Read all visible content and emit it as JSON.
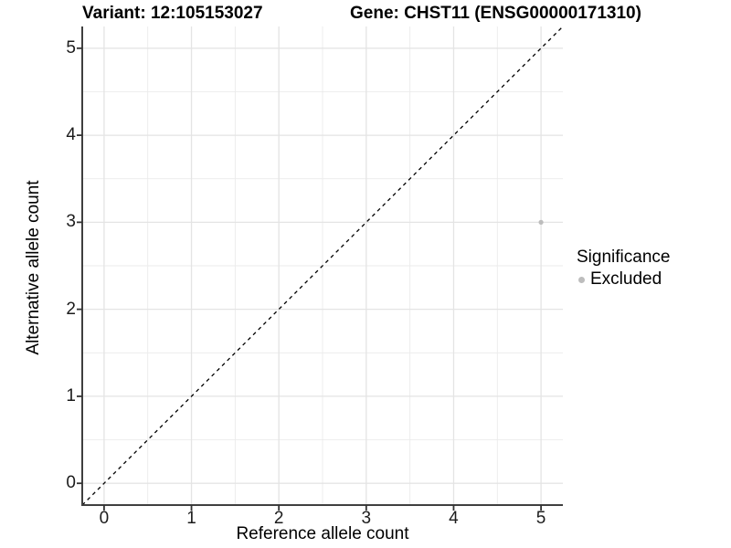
{
  "figure": {
    "title_left": "Variant: 12:105153027",
    "title_right": "Gene: CHST11 (ENSG00000171310)"
  },
  "chart_data": {
    "type": "scatter",
    "title_left": "Variant: 12:105153027",
    "title_right": "Gene: CHST11 (ENSG00000171310)",
    "xlabel": "Reference allele count",
    "ylabel": "Alternative allele count",
    "xlim": [
      -0.25,
      5.25
    ],
    "ylim": [
      -0.25,
      5.25
    ],
    "x_ticks": [
      0,
      1,
      2,
      3,
      4,
      5
    ],
    "y_ticks": [
      0,
      1,
      2,
      3,
      4,
      5
    ],
    "grid": "major+minor",
    "minor_grid_step": 0.5,
    "points": [
      {
        "x": 5,
        "y": 3,
        "series": "Excluded"
      }
    ],
    "series": [
      {
        "name": "Excluded",
        "color": "#bdbdbd",
        "values": [
          [
            5,
            3
          ]
        ]
      }
    ],
    "reference_line": {
      "type": "identity (y = x)",
      "style": "dashed",
      "color": "#000000"
    },
    "legend": {
      "title": "Significance",
      "position": "right",
      "items": [
        {
          "label": "Excluded",
          "color": "#bdbdbd"
        }
      ]
    },
    "colors": {
      "panel_background": "#ffffff",
      "grid_major": "#e4e4e4",
      "grid_minor": "#ebebeb",
      "axis_line": "#3f3f3f",
      "tick_mark": "#333333",
      "point": "#bdbdbd"
    }
  }
}
